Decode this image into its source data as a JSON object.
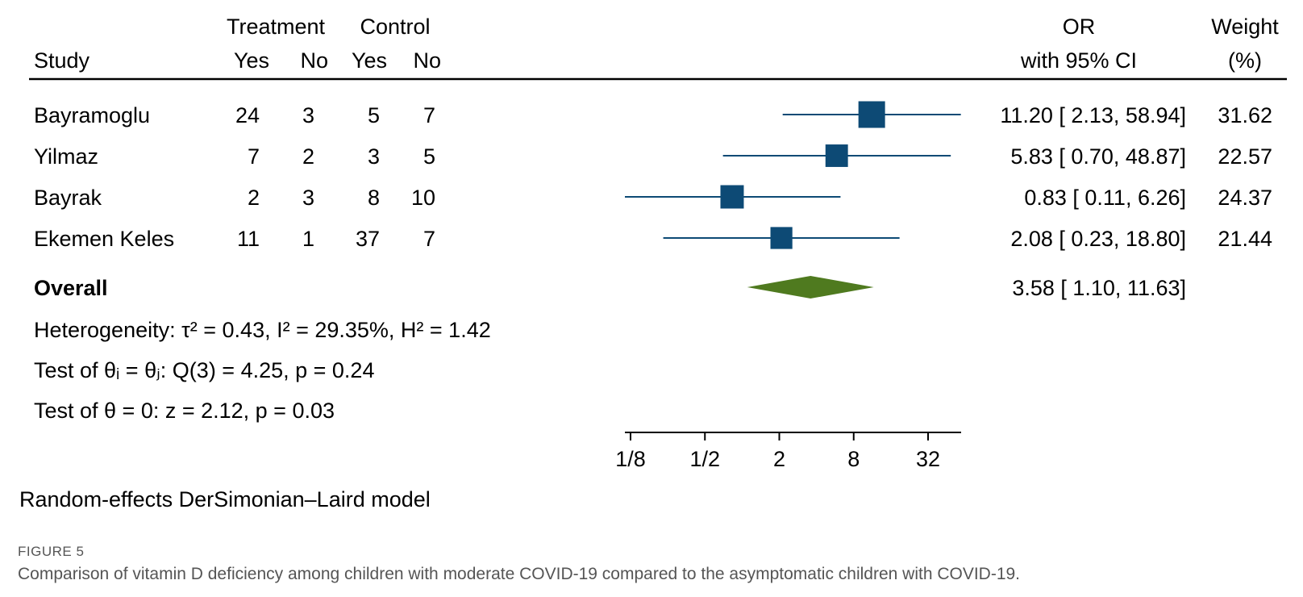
{
  "chart_data": {
    "type": "forest",
    "header": {
      "study": "Study",
      "treatment": "Treatment",
      "control": "Control",
      "yes": "Yes",
      "no": "No",
      "or_line1": "OR",
      "or_line2": "with 95% CI",
      "weight_line1": "Weight",
      "weight_line2": "(%)"
    },
    "studies": [
      {
        "name": "Bayramoglu",
        "t_yes": "24",
        "t_no": "3",
        "c_yes": "5",
        "c_no": "7",
        "or": 11.2,
        "lo": 2.13,
        "hi": 58.94,
        "ci_text": "11.20 [ 2.13,  58.94]",
        "weight": 31.62,
        "weight_text": "31.62"
      },
      {
        "name": "Yilmaz",
        "t_yes": "7",
        "t_no": "2",
        "c_yes": "3",
        "c_no": "5",
        "or": 5.83,
        "lo": 0.7,
        "hi": 48.87,
        "ci_text": "5.83 [ 0.70,  48.87]",
        "weight": 22.57,
        "weight_text": "22.57"
      },
      {
        "name": "Bayrak",
        "t_yes": "2",
        "t_no": "3",
        "c_yes": "8",
        "c_no": "10",
        "or": 0.83,
        "lo": 0.11,
        "hi": 6.26,
        "ci_text": "0.83 [ 0.11,    6.26]",
        "weight": 24.37,
        "weight_text": "24.37"
      },
      {
        "name": "Ekemen Keles",
        "t_yes": "11",
        "t_no": "1",
        "c_yes": "37",
        "c_no": "7",
        "or": 2.08,
        "lo": 0.23,
        "hi": 18.8,
        "ci_text": "2.08 [ 0.23,  18.80]",
        "weight": 21.44,
        "weight_text": "21.44"
      }
    ],
    "overall": {
      "label": "Overall",
      "or": 3.58,
      "lo": 1.1,
      "hi": 11.63,
      "ci_text": "3.58 [ 1.10,  11.63]"
    },
    "heterogeneity": "Heterogeneity: τ² = 0.43, I² = 29.35%, H² = 1.42",
    "test_theta_eq": "Test of θᵢ = θⱼ: Q(3) = 4.25, p = 0.24",
    "test_theta_zero": "Test of θ = 0: z = 2.12, p = 0.03",
    "x_scale": "log2",
    "x_ticks": [
      0.125,
      0.5,
      2,
      8,
      32
    ],
    "x_tick_labels": [
      "1/8",
      "1/2",
      "2",
      "8",
      "32"
    ],
    "model_note": "Random-effects DerSimonian–Laird model",
    "colors": {
      "study_marker": "#0d4a75",
      "ci_line": "#0d4a75",
      "overall_diamond": "#4f7a1f"
    }
  },
  "caption": {
    "label": "FIGURE 5",
    "text": "Comparison of vitamin D deficiency among children with moderate COVID-19 compared to the asymptomatic children with COVID-19."
  }
}
